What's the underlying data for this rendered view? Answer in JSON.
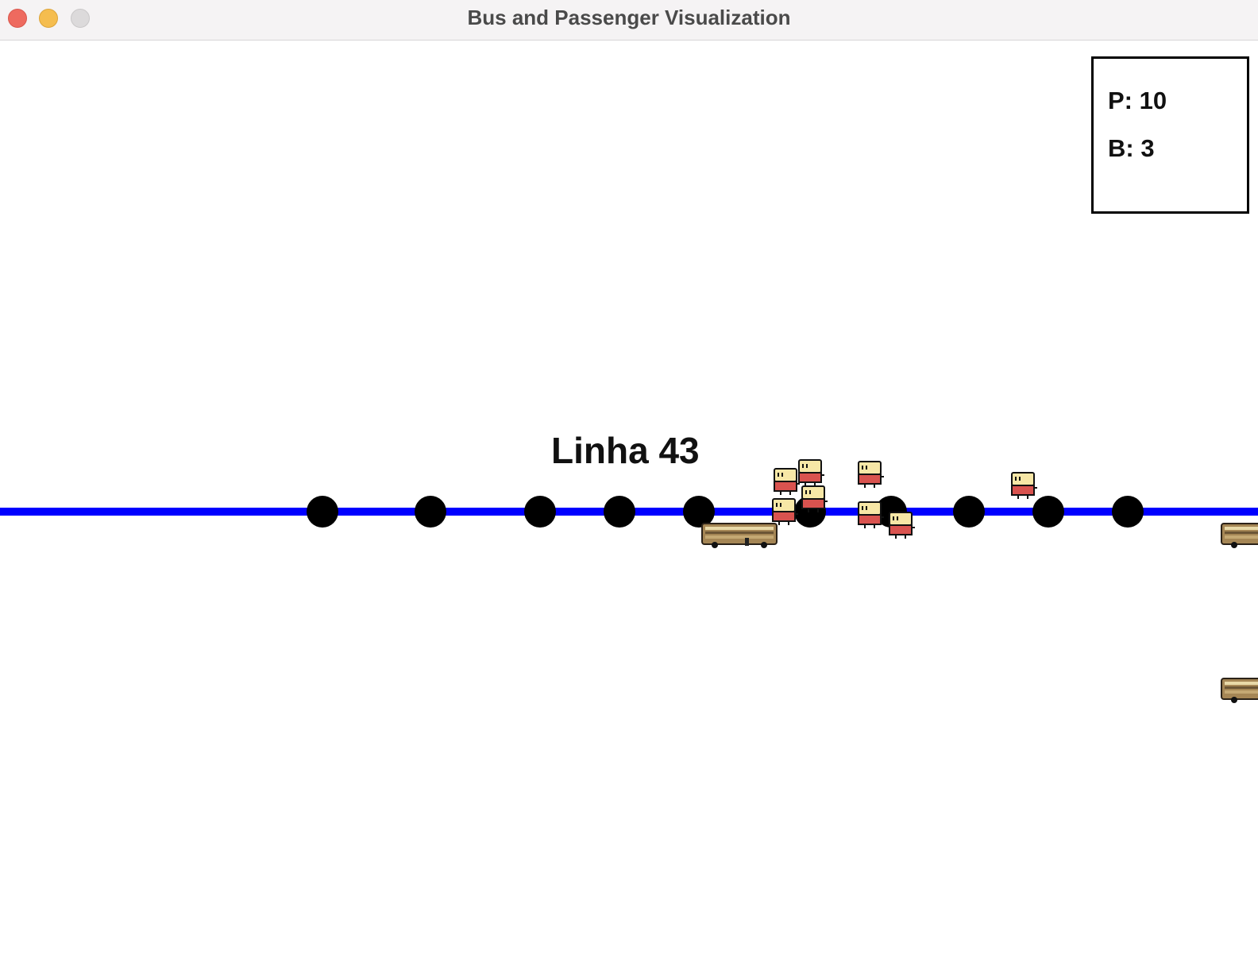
{
  "window": {
    "title": "Bus and Passenger Visualization"
  },
  "stats": {
    "passengers_label": "P: 10",
    "buses_label": "B: 3"
  },
  "line": {
    "label": "Linha 43",
    "color": "#0000ff"
  },
  "stop_count": 11,
  "colors": {
    "stop": "#000000",
    "bus_body": "#a58655",
    "passenger_head": "#f7e7a6",
    "passenger_body": "#d9534f"
  }
}
